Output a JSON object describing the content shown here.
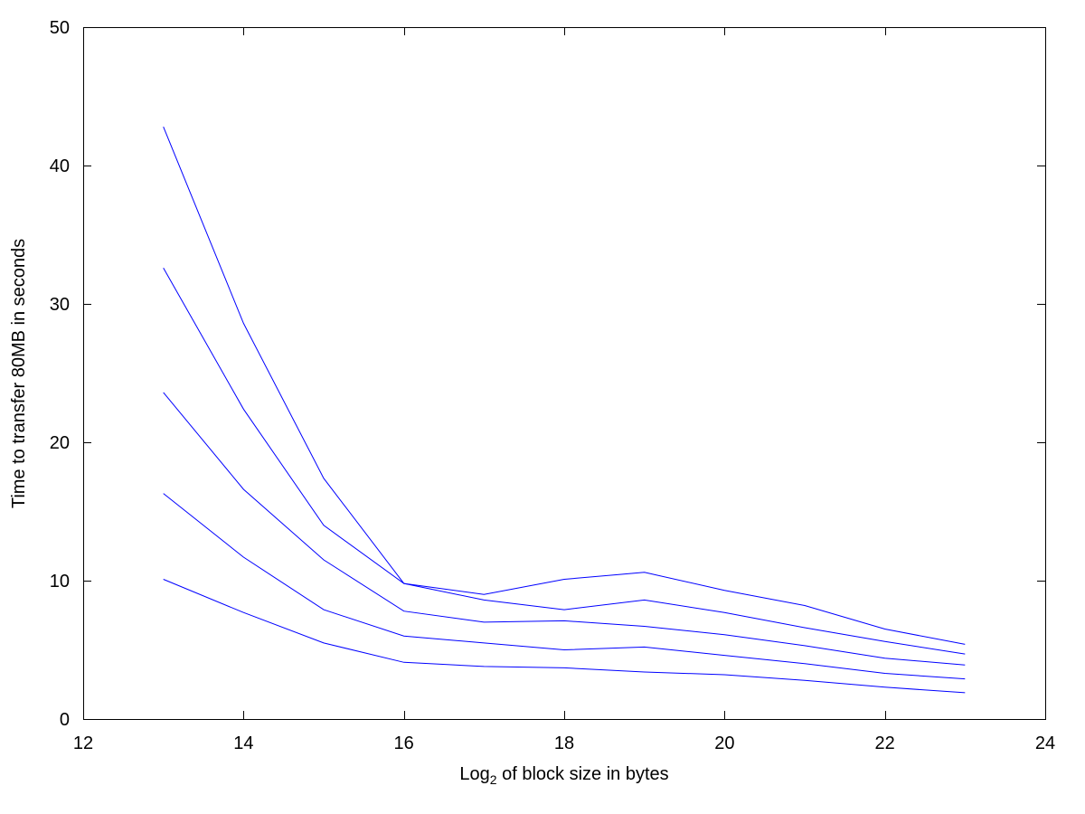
{
  "chart_data": {
    "type": "line",
    "title": "",
    "xlabel_base": "Log",
    "xlabel_sub": "2",
    "xlabel_rest": " of block size in bytes",
    "ylabel": "Time to transfer 80MB in seconds",
    "xlim": [
      12,
      24
    ],
    "ylim": [
      0,
      50
    ],
    "xticks": [
      12,
      14,
      16,
      18,
      20,
      22,
      24
    ],
    "yticks": [
      0,
      10,
      20,
      30,
      40,
      50
    ],
    "line_color": "#0000ff",
    "x": [
      13,
      14,
      15,
      16,
      17,
      18,
      19,
      20,
      21,
      22,
      23
    ],
    "series": [
      {
        "values": [
          42.8,
          28.6,
          17.4,
          9.8,
          9.0,
          10.1,
          10.6,
          9.3,
          8.2,
          6.5,
          5.4
        ]
      },
      {
        "values": [
          32.6,
          22.4,
          14.0,
          9.8,
          8.6,
          7.9,
          8.6,
          7.7,
          6.6,
          5.6,
          4.7
        ]
      },
      {
        "values": [
          23.6,
          16.6,
          11.5,
          7.8,
          7.0,
          7.1,
          6.7,
          6.1,
          5.3,
          4.4,
          3.9
        ]
      },
      {
        "values": [
          16.3,
          11.7,
          7.9,
          6.0,
          5.5,
          5.0,
          5.2,
          4.6,
          4.0,
          3.3,
          2.9
        ]
      },
      {
        "values": [
          10.1,
          7.7,
          5.5,
          4.1,
          3.8,
          3.7,
          3.4,
          3.2,
          2.8,
          2.3,
          1.9
        ]
      }
    ]
  }
}
